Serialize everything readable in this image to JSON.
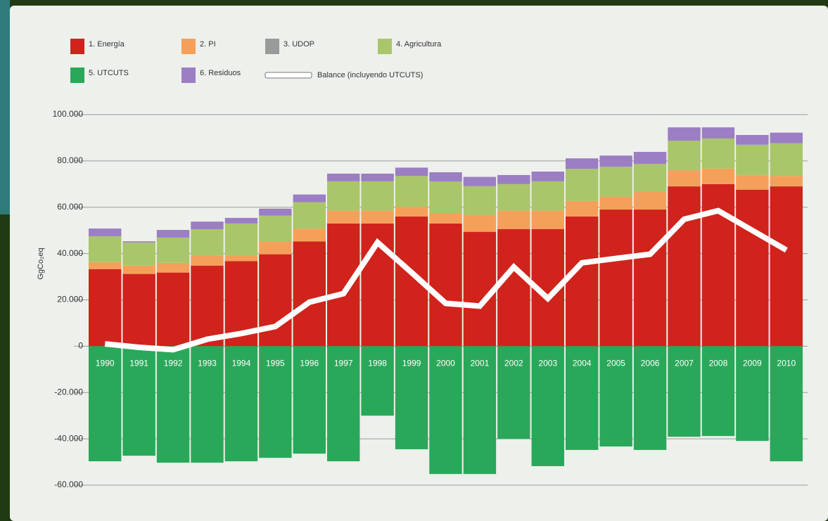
{
  "chart_data": {
    "type": "bar",
    "y_label": "GgCo₂eq",
    "categories": [
      "1990",
      "1991",
      "1992",
      "1993",
      "1994",
      "1995",
      "1996",
      "1997",
      "1998",
      "1999",
      "2000",
      "2001",
      "2002",
      "2003",
      "2004",
      "2005",
      "2006",
      "2007",
      "2008",
      "2009",
      "2010"
    ],
    "series": [
      {
        "name": "1. Energía",
        "color": "#d0231c",
        "values": [
          33300,
          31200,
          31800,
          34800,
          36700,
          39700,
          45200,
          53000,
          53000,
          56000,
          53000,
          49400,
          50600,
          50600,
          56000,
          59000,
          59000,
          69000,
          70000,
          67600,
          69000
        ]
      },
      {
        "name": "2. PI",
        "color": "#f5a05a",
        "values": [
          3000,
          3600,
          4200,
          4200,
          2400,
          5500,
          5500,
          5500,
          5500,
          4200,
          4500,
          7300,
          7900,
          7900,
          6700,
          5500,
          7600,
          7000,
          6700,
          6100,
          4500
        ]
      },
      {
        "name": "3. UDOP",
        "color": "#9a9a9a",
        "values": [
          0,
          0,
          0,
          0,
          0,
          0,
          0,
          0,
          0,
          0,
          0,
          0,
          0,
          0,
          0,
          0,
          0,
          0,
          0,
          0,
          0
        ]
      },
      {
        "name": "4. Agricultura",
        "color": "#a9c66a",
        "values": [
          11200,
          10000,
          10900,
          11500,
          13900,
          11200,
          11500,
          12700,
          12700,
          13300,
          13600,
          12400,
          11500,
          12700,
          13900,
          13000,
          12100,
          12700,
          13000,
          13300,
          14200
        ]
      },
      {
        "name": "5. UTCUTS",
        "color": "#2aa85a",
        "values": [
          -49700,
          -47300,
          -50300,
          -50300,
          -49700,
          -48200,
          -46400,
          -49700,
          -30000,
          -44500,
          -55200,
          -55200,
          -40000,
          -51800,
          -44800,
          -43300,
          -44800,
          -39100,
          -38800,
          -40900,
          -49700
        ]
      },
      {
        "name": "6. Residuos",
        "color": "#9b7ec4",
        "values": [
          3300,
          500,
          3300,
          3300,
          2400,
          3000,
          3300,
          3300,
          3300,
          3600,
          4000,
          4000,
          3900,
          4200,
          4500,
          4800,
          5200,
          5800,
          4800,
          4200,
          4500
        ]
      },
      {
        "name": "Balance (incluyendo UTCUTS)",
        "type": "line",
        "color": "#ffffff",
        "values": [
          1000,
          -500,
          -1500,
          3000,
          5500,
          8500,
          19000,
          22700,
          44800,
          31800,
          18500,
          17300,
          34200,
          20600,
          36000,
          37900,
          39700,
          54800,
          58500,
          50000,
          41500
        ]
      }
    ],
    "ylim": [
      -60000,
      100000
    ],
    "yticks": [
      {
        "value": -60000,
        "label": "-60.000"
      },
      {
        "value": -40000,
        "label": "-40.000"
      },
      {
        "value": -20000,
        "label": "-20.000"
      },
      0,
      {
        "value": 20000,
        "label": "20.000"
      },
      {
        "value": 40000,
        "label": "40.000"
      },
      {
        "value": 60000,
        "label": "60.000"
      },
      {
        "value": 80000,
        "label": "80.000"
      },
      {
        "value": 100000,
        "label": "100.000"
      }
    ],
    "grid": true
  }
}
